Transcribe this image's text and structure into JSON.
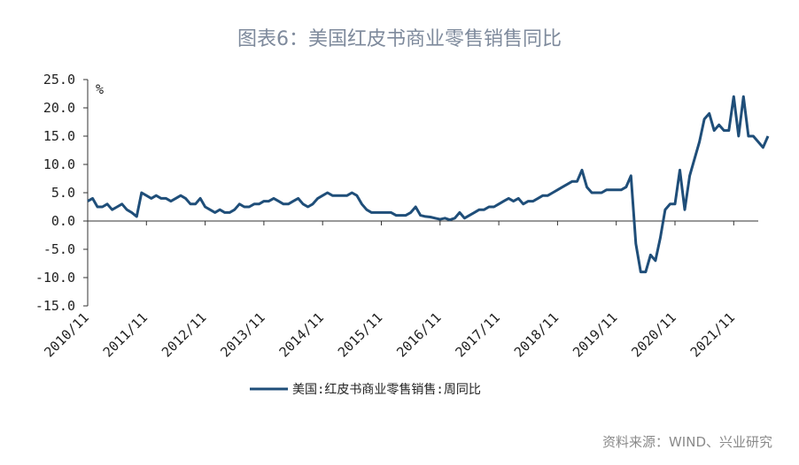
{
  "title": "图表6：美国红皮书商业零售销售同比",
  "source": "资料来源：WIND、兴业研究",
  "chart_data": {
    "type": "line",
    "title": "图表6：美国红皮书商业零售销售同比",
    "ylabel": "%",
    "ylim": [
      -15,
      25
    ],
    "yticks": [
      "25.0",
      "20.0",
      "15.0",
      "10.0",
      "5.0",
      "0.0",
      "-5.0",
      "-10.0",
      "-15.0"
    ],
    "xticks": [
      "2010/11",
      "2011/11",
      "2012/11",
      "2013/11",
      "2014/11",
      "2015/11",
      "2016/11",
      "2017/11",
      "2018/11",
      "2019/11",
      "2020/11",
      "2021/11"
    ],
    "x_start": "2010/11",
    "x_end": "2022/06",
    "frequency": "monthly (approx.)",
    "grid": false,
    "legend_position": "bottom",
    "color": "#1f4e79",
    "series": [
      {
        "name": "美国:红皮书商业零售销售:周同比",
        "values": [
          3.5,
          4,
          2.5,
          2.5,
          3,
          2,
          2.5,
          3,
          2,
          1.5,
          0.8,
          5,
          4.5,
          4,
          4.5,
          4,
          4,
          3.5,
          4,
          4.5,
          4,
          3,
          3,
          4,
          2.5,
          2,
          1.5,
          2,
          1.5,
          1.5,
          2,
          3,
          2.5,
          2.5,
          3,
          3,
          3.5,
          3.5,
          4,
          3.5,
          3,
          3,
          3.5,
          4,
          3,
          2.5,
          3,
          4,
          4.5,
          5,
          4.5,
          4.5,
          4.5,
          4.5,
          5,
          4.5,
          3,
          2,
          1.5,
          1.5,
          1.5,
          1.5,
          1.5,
          1,
          1,
          1,
          1.5,
          2.5,
          1,
          0.8,
          0.7,
          0.5,
          0.3,
          0.5,
          0.2,
          0.5,
          1.5,
          0.5,
          1,
          1.5,
          2,
          2,
          2.5,
          2.5,
          3,
          3.5,
          4,
          3.5,
          4,
          3,
          3.5,
          3.5,
          4,
          4.5,
          4.5,
          5,
          5.5,
          6,
          6.5,
          7,
          7,
          9,
          6,
          5,
          5,
          5,
          5.5,
          5.5,
          5.5,
          5.5,
          6,
          8,
          -4,
          -9,
          -9,
          -6,
          -7,
          -3,
          2,
          3,
          3,
          9,
          2,
          8,
          11,
          14,
          18,
          19,
          16,
          17,
          16,
          16,
          22,
          15,
          22,
          15,
          15,
          14,
          13,
          15
        ]
      }
    ]
  }
}
